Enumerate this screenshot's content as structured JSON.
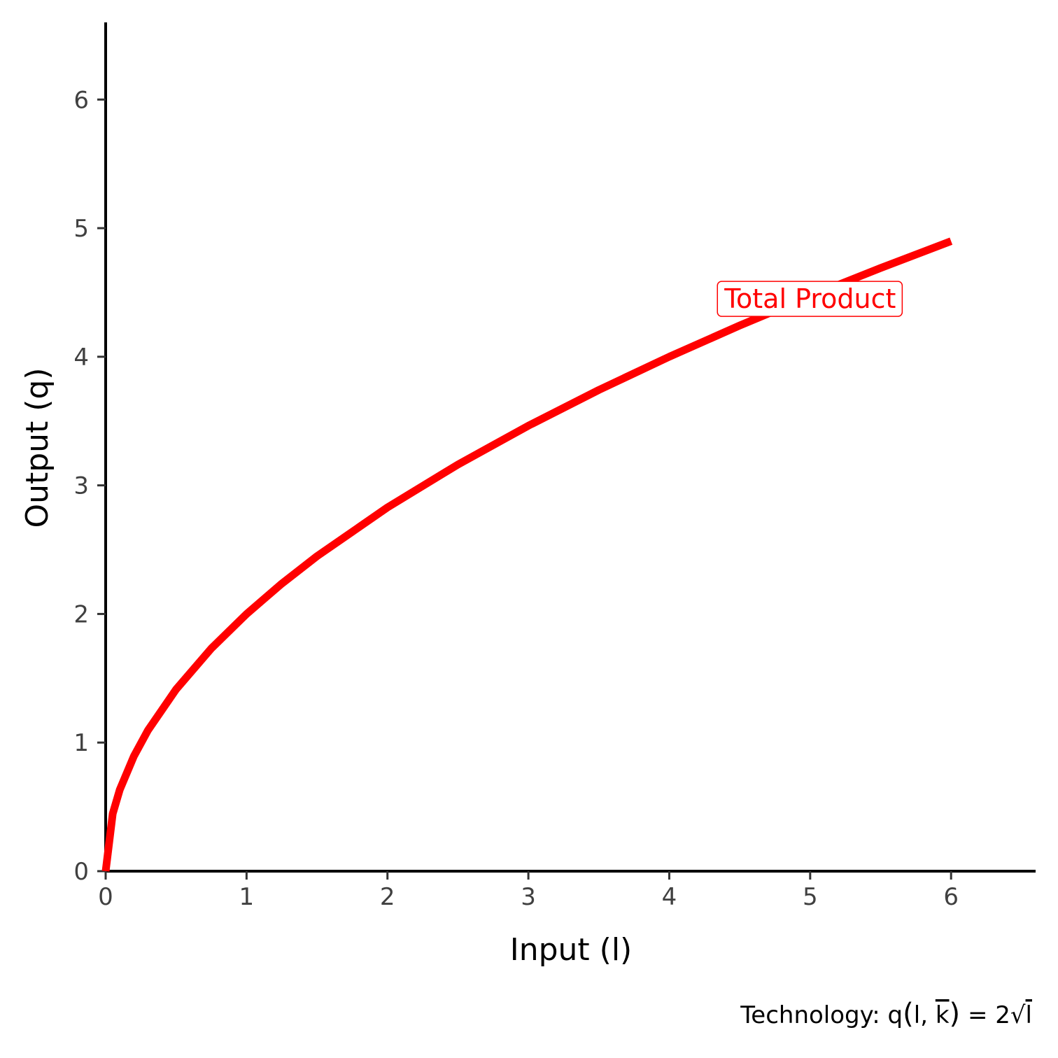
{
  "chart_data": {
    "type": "line",
    "xlabel": "Input (l)",
    "ylabel": "Output (q)",
    "xlim": [
      0,
      6.6
    ],
    "ylim": [
      0,
      6.6
    ],
    "x_ticks": [
      0,
      1,
      2,
      3,
      4,
      5,
      6
    ],
    "y_ticks": [
      0,
      1,
      2,
      3,
      4,
      5,
      6
    ],
    "grid": false,
    "series": [
      {
        "name": "Total Product",
        "color": "#ff0000",
        "x": [
          0,
          0.05,
          0.1,
          0.2,
          0.3,
          0.5,
          0.75,
          1,
          1.25,
          1.5,
          2,
          2.5,
          3,
          3.5,
          4,
          4.5,
          5,
          5.5,
          6
        ],
        "y": [
          0,
          0.447,
          0.632,
          0.894,
          1.095,
          1.414,
          1.732,
          2.0,
          2.236,
          2.449,
          2.828,
          3.162,
          3.464,
          3.742,
          4.0,
          4.243,
          4.472,
          4.69,
          4.899
        ]
      }
    ],
    "annotations": [
      {
        "text": "Total Product",
        "x": 5.0,
        "y": 4.45,
        "color": "#ff0000"
      }
    ],
    "caption": {
      "prefix": "Technology: q",
      "l": "l",
      "k": "k",
      "rhs": "= 2",
      "sqrt_arg": "l"
    }
  }
}
